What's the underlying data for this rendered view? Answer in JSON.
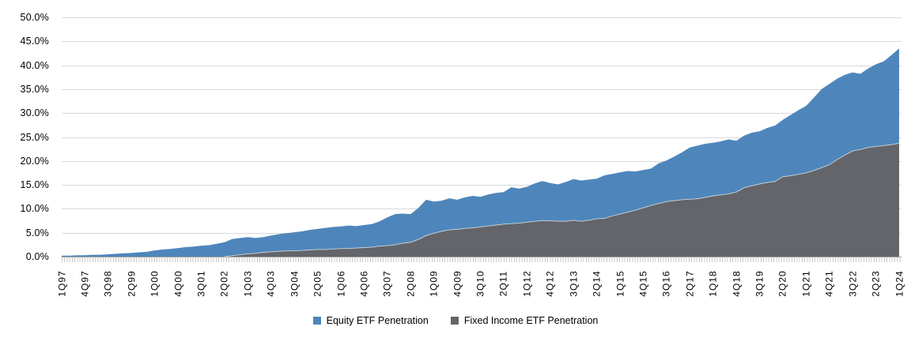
{
  "chart_data": {
    "type": "area",
    "mode": "overlapping",
    "title": "",
    "xlabel": "",
    "ylabel": "",
    "ylim": [
      0,
      50
    ],
    "grid": "horizontal",
    "legend_position": "bottom",
    "y_ticks": [
      "0.0%",
      "5.0%",
      "10.0%",
      "15.0%",
      "20.0%",
      "25.0%",
      "30.0%",
      "35.0%",
      "40.0%",
      "45.0%",
      "50.0%"
    ],
    "x_tick_labels": [
      "1Q97",
      "4Q97",
      "3Q98",
      "2Q99",
      "1Q00",
      "4Q00",
      "3Q01",
      "2Q02",
      "1Q03",
      "4Q03",
      "3Q04",
      "2Q05",
      "1Q06",
      "4Q06",
      "3Q07",
      "2Q08",
      "1Q09",
      "4Q09",
      "3Q10",
      "2Q11",
      "1Q12",
      "4Q12",
      "3Q13",
      "2Q14",
      "1Q15",
      "4Q15",
      "3Q16",
      "2Q17",
      "1Q18",
      "4Q18",
      "3Q19",
      "2Q20",
      "1Q21",
      "4Q21",
      "3Q22",
      "2Q23",
      "1Q24"
    ],
    "x_label_every_n_points": 3,
    "categories": [
      "1Q97",
      "2Q97",
      "3Q97",
      "4Q97",
      "1Q98",
      "2Q98",
      "3Q98",
      "4Q98",
      "1Q99",
      "2Q99",
      "3Q99",
      "4Q99",
      "1Q00",
      "2Q00",
      "3Q00",
      "4Q00",
      "1Q01",
      "2Q01",
      "3Q01",
      "4Q01",
      "1Q02",
      "2Q02",
      "3Q02",
      "4Q02",
      "1Q03",
      "2Q03",
      "3Q03",
      "4Q03",
      "1Q04",
      "2Q04",
      "3Q04",
      "4Q04",
      "1Q05",
      "2Q05",
      "3Q05",
      "4Q05",
      "1Q06",
      "2Q06",
      "3Q06",
      "4Q06",
      "1Q07",
      "2Q07",
      "3Q07",
      "4Q07",
      "1Q08",
      "2Q08",
      "3Q08",
      "4Q08",
      "1Q09",
      "2Q09",
      "3Q09",
      "4Q09",
      "1Q10",
      "2Q10",
      "3Q10",
      "4Q10",
      "1Q11",
      "2Q11",
      "3Q11",
      "4Q11",
      "1Q12",
      "2Q12",
      "3Q12",
      "4Q12",
      "1Q13",
      "2Q13",
      "3Q13",
      "4Q13",
      "1Q14",
      "2Q14",
      "3Q14",
      "4Q14",
      "1Q15",
      "2Q15",
      "3Q15",
      "4Q15",
      "1Q16",
      "2Q16",
      "3Q16",
      "4Q16",
      "1Q17",
      "2Q17",
      "3Q17",
      "4Q17",
      "1Q18",
      "2Q18",
      "3Q18",
      "4Q18",
      "1Q19",
      "2Q19",
      "3Q19",
      "4Q19",
      "1Q20",
      "2Q20",
      "3Q20",
      "4Q20",
      "1Q21",
      "2Q21",
      "3Q21",
      "4Q21",
      "1Q22",
      "2Q22",
      "3Q22",
      "4Q22",
      "1Q23",
      "2Q23",
      "3Q23",
      "4Q23",
      "1Q24"
    ],
    "series": [
      {
        "name": "Equity ETF Penetration",
        "color": "#4E86BB",
        "values": [
          0.2,
          0.2,
          0.3,
          0.3,
          0.4,
          0.4,
          0.5,
          0.6,
          0.7,
          0.8,
          0.9,
          1.0,
          1.3,
          1.5,
          1.6,
          1.8,
          2.0,
          2.1,
          2.3,
          2.4,
          2.7,
          3.0,
          3.7,
          3.9,
          4.1,
          3.9,
          4.1,
          4.4,
          4.7,
          4.9,
          5.1,
          5.3,
          5.6,
          5.8,
          6.0,
          6.2,
          6.3,
          6.5,
          6.4,
          6.6,
          6.8,
          7.4,
          8.2,
          8.9,
          9.0,
          8.9,
          10.2,
          11.9,
          11.5,
          11.7,
          12.2,
          11.9,
          12.4,
          12.7,
          12.5,
          13.0,
          13.3,
          13.5,
          14.5,
          14.2,
          14.6,
          15.3,
          15.8,
          15.4,
          15.1,
          15.6,
          16.2,
          15.9,
          16.1,
          16.3,
          17.0,
          17.3,
          17.6,
          17.9,
          17.8,
          18.1,
          18.4,
          19.5,
          20.1,
          20.9,
          21.8,
          22.8,
          23.2,
          23.6,
          23.8,
          24.1,
          24.5,
          24.2,
          25.3,
          25.9,
          26.2,
          26.9,
          27.4,
          28.6,
          29.6,
          30.6,
          31.5,
          33.2,
          35.0,
          36.1,
          37.2,
          38.0,
          38.5,
          38.2,
          39.3,
          40.2,
          40.8,
          42.1,
          43.5
        ]
      },
      {
        "name": "Fixed Income ETF Penetration",
        "color": "#63656A",
        "values": [
          0,
          0,
          0,
          0,
          0,
          0,
          0,
          0,
          0,
          0,
          0,
          0,
          0,
          0,
          0,
          0,
          0,
          0,
          0,
          0,
          0,
          0,
          0.2,
          0.4,
          0.6,
          0.7,
          0.9,
          1.0,
          1.1,
          1.2,
          1.2,
          1.3,
          1.4,
          1.5,
          1.5,
          1.6,
          1.7,
          1.7,
          1.8,
          1.9,
          2.0,
          2.2,
          2.3,
          2.5,
          2.8,
          3.0,
          3.6,
          4.4,
          4.9,
          5.3,
          5.6,
          5.7,
          5.9,
          6.0,
          6.2,
          6.4,
          6.6,
          6.8,
          6.9,
          7.0,
          7.2,
          7.4,
          7.5,
          7.5,
          7.4,
          7.4,
          7.6,
          7.4,
          7.6,
          7.9,
          8.0,
          8.5,
          8.9,
          9.3,
          9.7,
          10.2,
          10.7,
          11.1,
          11.5,
          11.7,
          11.9,
          12.0,
          12.1,
          12.4,
          12.7,
          12.9,
          13.1,
          13.5,
          14.4,
          14.8,
          15.2,
          15.5,
          15.7,
          16.7,
          16.9,
          17.2,
          17.5,
          18.0,
          18.6,
          19.2,
          20.3,
          21.2,
          22.1,
          22.4,
          22.8,
          23.0,
          23.2,
          23.4,
          23.7
        ]
      }
    ]
  },
  "colors": {
    "background": "#FFFFFF",
    "gridline": "#D9D9D9",
    "axis_line": "#A6A6A6",
    "tick": "#C8C8C8",
    "text": "#000000",
    "series_edge_highlight": "#CDD6DD"
  }
}
